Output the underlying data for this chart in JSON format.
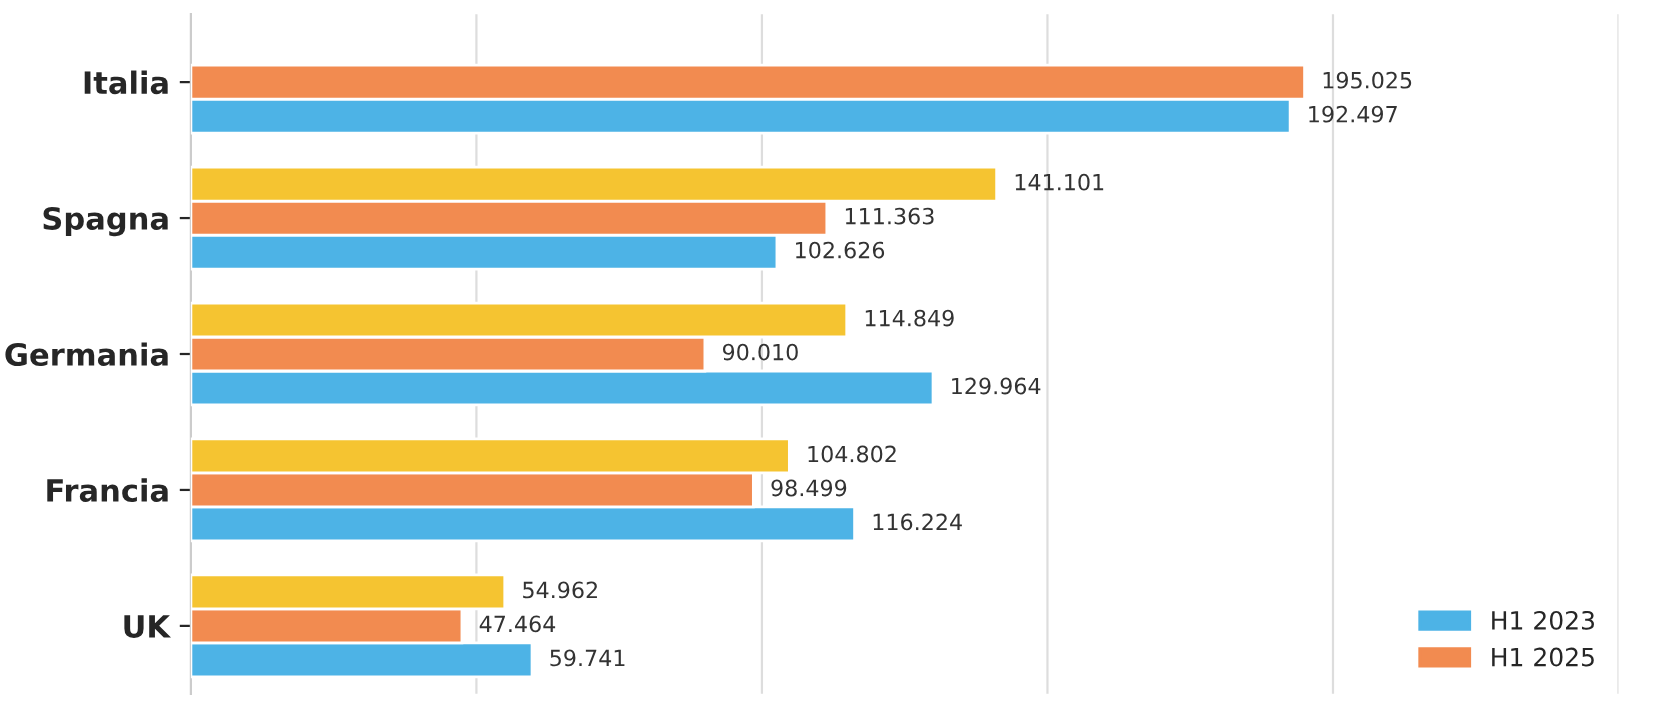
{
  "chart_data": {
    "type": "bar",
    "orientation": "horizontal",
    "categories": [
      "Italia",
      "Spagna",
      "Germania",
      "Francia",
      "UK"
    ],
    "series": [
      {
        "name": "H1 2023",
        "color": "#4db3e6",
        "values": [
          192497,
          102626,
          129964,
          116224,
          59741
        ],
        "value_labels": [
          "192.497",
          "102.626",
          "129.964",
          "116.224",
          "59.741"
        ]
      },
      {
        "name": "H1 2025",
        "color": "#f28b50",
        "values": [
          195025,
          111363,
          90010,
          98499,
          47464
        ],
        "value_labels": [
          "195.025",
          "111.363",
          "90.010",
          "98.499",
          "47.464"
        ]
      },
      {
        "color": "#f5c431",
        "values": [
          null,
          141101,
          114849,
          104802,
          54962
        ],
        "value_labels": [
          null,
          "141.101",
          "114.849",
          "104.802",
          "54.962"
        ]
      }
    ],
    "xticks": [
      {
        "value": 50000,
        "label": null
      },
      {
        "value": 100000,
        "label": null
      },
      {
        "value": 150000,
        "label": null
      },
      {
        "value": 200000,
        "label": null
      },
      {
        "value": 250000,
        "label": null
      }
    ],
    "tick_labels": "y",
    "grid": "x",
    "legend": "bottom right"
  }
}
